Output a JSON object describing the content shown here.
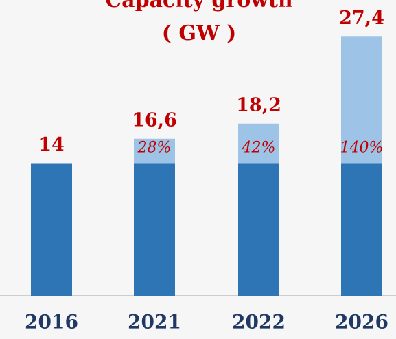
{
  "chart_data": {
    "type": "stacked_bar",
    "title": [
      "Capacity growth",
      "( GW )"
    ],
    "categories": [
      "2016",
      "2021",
      "2022",
      "2026"
    ],
    "series": [
      {
        "color": "#2e75b6",
        "values": [
          14,
          14,
          14,
          14
        ]
      },
      {
        "color": "#9dc3e6",
        "values": [
          null,
          2.6,
          4.2,
          13.4
        ]
      }
    ],
    "totals": [
      14,
      16.6,
      18.2,
      27.4
    ],
    "total_labels": [
      "14",
      "16,6",
      "18,2",
      "27,4"
    ],
    "annotations": [
      null,
      "28%",
      "42%",
      "140%"
    ],
    "ylim": [
      0,
      28
    ]
  }
}
